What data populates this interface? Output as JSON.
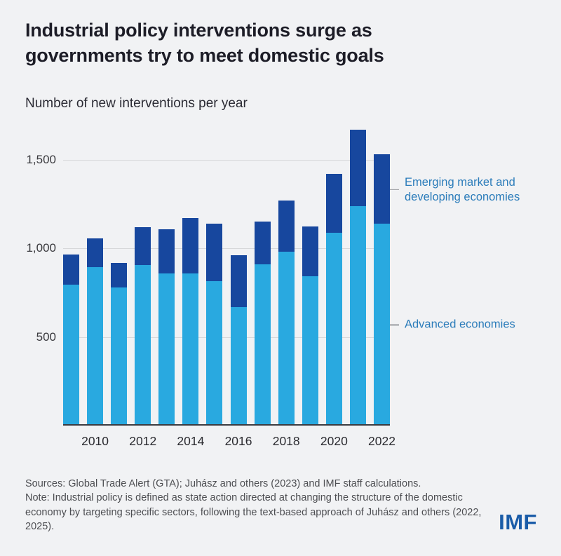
{
  "header": {
    "title": "Industrial policy interventions surge as governments try to meet domestic goals",
    "subtitle": "Number of new interventions per year"
  },
  "chart_data": {
    "type": "bar",
    "stacked": true,
    "title": "Industrial policy interventions surge as governments try to meet domestic goals",
    "subtitle": "Number of new interventions per year",
    "categories": [
      2009,
      2010,
      2011,
      2012,
      2013,
      2014,
      2015,
      2016,
      2017,
      2018,
      2019,
      2020,
      2021,
      2022
    ],
    "series": [
      {
        "name": "Advanced economies",
        "color": "#29a9e0",
        "values": [
          790,
          890,
          775,
          900,
          855,
          855,
          810,
          665,
          905,
          975,
          840,
          1085,
          1235,
          1135
        ]
      },
      {
        "name": "Emerging market and developing economies",
        "color": "#17479e",
        "values": [
          170,
          160,
          140,
          215,
          250,
          310,
          325,
          290,
          240,
          290,
          280,
          330,
          430,
          390
        ]
      }
    ],
    "ylim": [
      0,
      1700
    ],
    "yticks": [
      500,
      1000,
      1500
    ],
    "ytick_labels": [
      "500",
      "1,000",
      "1,500"
    ],
    "xticks": [
      2010,
      2012,
      2014,
      2016,
      2018,
      2020,
      2022
    ],
    "grid": true,
    "legend_position": "right-annotations",
    "annotations": [
      {
        "label": "Emerging market and developing economies",
        "target": "emerging"
      },
      {
        "label": "Advanced economies",
        "target": "advanced"
      }
    ]
  },
  "footer": {
    "sources": "Sources: Global Trade Alert (GTA); Juhász and others (2023) and IMF staff calculations.",
    "note": "Note: Industrial policy is defined as state action directed at changing the structure of the domestic economy by targeting specific sectors, following the text-based approach of Juhász and others (2022, 2025).",
    "logo": "IMF"
  },
  "colors": {
    "background": "#f1f2f4",
    "title_text": "#1d1d27",
    "advanced_blue": "#29a9e0",
    "emerging_blue": "#17479e",
    "annotation_text": "#2b7cba",
    "gridline": "#d7d8da",
    "axis_line": "#3b3b40",
    "source_text": "#4d4e52",
    "logo_blue": "#1a5ca8"
  }
}
